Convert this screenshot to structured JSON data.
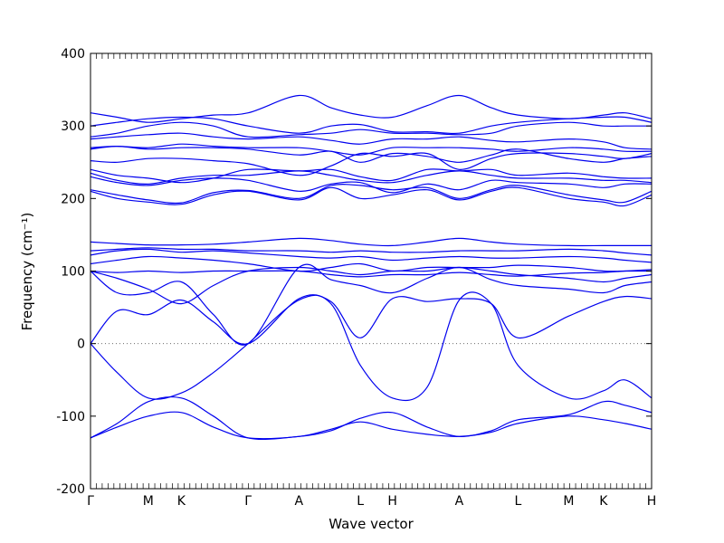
{
  "chart_data": {
    "type": "line",
    "xlabel": "Wave vector",
    "ylabel": "Frequency (cm⁻¹)",
    "ylim": [
      -200,
      400
    ],
    "yticks": [
      -200,
      -100,
      0,
      100,
      200,
      300,
      400
    ],
    "xlim": [
      0,
      10.5
    ],
    "xticks": [
      {
        "label": "Γ",
        "x": 0
      },
      {
        "label": "M",
        "x": 1.08
      },
      {
        "label": "K",
        "x": 1.7
      },
      {
        "label": "Γ",
        "x": 2.95
      },
      {
        "label": "A",
        "x": 3.9
      },
      {
        "label": "L",
        "x": 5.05
      },
      {
        "label": "H",
        "x": 5.65
      },
      {
        "label": "A",
        "x": 6.9
      },
      {
        "label": "L",
        "x": 8.0
      },
      {
        "label": "M",
        "x": 8.95
      },
      {
        "label": "K",
        "x": 9.6
      },
      {
        "label": "H",
        "x": 10.5
      }
    ],
    "zero_line": true,
    "series_color": "#0000ee",
    "x": [
      0,
      0.5,
      1.08,
      1.7,
      2.3,
      2.95,
      3.9,
      4.5,
      5.05,
      5.65,
      6.3,
      6.9,
      7.5,
      8.0,
      8.95,
      9.6,
      10.0,
      10.5
    ],
    "series": [
      {
        "values": [
          -130,
          -110,
          -80,
          -75,
          -100,
          -130,
          -128,
          -120,
          -103,
          -95,
          -115,
          -128,
          -120,
          -105,
          -98,
          -80,
          -85,
          -95
        ]
      },
      {
        "values": [
          -130,
          -115,
          -100,
          -95,
          -115,
          -130,
          -128,
          -118,
          -108,
          -118,
          -125,
          -128,
          -122,
          -110,
          -100,
          -105,
          -110,
          -118
        ]
      },
      {
        "values": [
          0,
          -40,
          -75,
          -68,
          -40,
          0,
          60,
          55,
          -30,
          -75,
          -60,
          60,
          55,
          -30,
          -75,
          -65,
          -50,
          -75
        ]
      },
      {
        "values": [
          0,
          45,
          40,
          60,
          30,
          0,
          62,
          58,
          8,
          62,
          58,
          62,
          55,
          8,
          38,
          58,
          65,
          62
        ]
      },
      {
        "values": [
          100,
          70,
          70,
          85,
          40,
          0,
          105,
          88,
          80,
          70,
          90,
          105,
          88,
          80,
          75,
          70,
          80,
          85
        ]
      },
      {
        "values": [
          100,
          90,
          75,
          55,
          80,
          100,
          105,
          100,
          95,
          100,
          100,
          105,
          100,
          95,
          90,
          85,
          90,
          95
        ]
      },
      {
        "values": [
          100,
          98,
          100,
          98,
          100,
          100,
          100,
          95,
          92,
          95,
          95,
          98,
          95,
          93,
          97,
          98,
          100,
          102
        ]
      },
      {
        "values": [
          110,
          115,
          120,
          118,
          115,
          110,
          100,
          105,
          110,
          100,
          105,
          105,
          105,
          108,
          105,
          100,
          100,
          100
        ]
      },
      {
        "values": [
          122,
          128,
          130,
          126,
          128,
          125,
          120,
          118,
          120,
          115,
          118,
          120,
          118,
          118,
          120,
          118,
          115,
          112
        ]
      },
      {
        "values": [
          128,
          130,
          132,
          130,
          130,
          128,
          128,
          126,
          128,
          126,
          126,
          128,
          128,
          128,
          130,
          128,
          125,
          122
        ]
      },
      {
        "values": [
          140,
          138,
          136,
          136,
          137,
          140,
          145,
          142,
          137,
          135,
          140,
          145,
          140,
          137,
          135,
          135,
          135,
          135
        ]
      },
      {
        "values": [
          210,
          200,
          195,
          192,
          205,
          210,
          198,
          215,
          200,
          205,
          212,
          198,
          210,
          215,
          200,
          195,
          190,
          205
        ]
      },
      {
        "values": [
          212,
          205,
          198,
          194,
          208,
          211,
          200,
          218,
          218,
          212,
          215,
          200,
          212,
          218,
          205,
          198,
          195,
          210
        ]
      },
      {
        "values": [
          230,
          222,
          218,
          225,
          228,
          225,
          210,
          220,
          222,
          208,
          220,
          212,
          225,
          222,
          220,
          215,
          220,
          220
        ]
      },
      {
        "values": [
          235,
          225,
          220,
          228,
          232,
          232,
          238,
          232,
          225,
          222,
          232,
          238,
          232,
          228,
          228,
          225,
          225,
          222
        ]
      },
      {
        "values": [
          240,
          232,
          228,
          222,
          228,
          240,
          238,
          240,
          230,
          225,
          240,
          238,
          240,
          232,
          235,
          230,
          228,
          228
        ]
      },
      {
        "values": [
          252,
          250,
          255,
          255,
          252,
          248,
          232,
          245,
          262,
          258,
          262,
          240,
          255,
          262,
          262,
          258,
          255,
          262
        ]
      },
      {
        "values": [
          268,
          272,
          268,
          270,
          270,
          268,
          260,
          265,
          250,
          262,
          258,
          250,
          260,
          268,
          255,
          250,
          255,
          258
        ]
      },
      {
        "values": [
          270,
          272,
          270,
          275,
          272,
          270,
          270,
          265,
          260,
          270,
          270,
          270,
          268,
          265,
          270,
          268,
          265,
          265
        ]
      },
      {
        "values": [
          282,
          285,
          288,
          290,
          285,
          282,
          285,
          280,
          275,
          282,
          282,
          285,
          280,
          278,
          282,
          278,
          270,
          268
        ]
      },
      {
        "values": [
          285,
          290,
          300,
          305,
          300,
          285,
          288,
          290,
          295,
          290,
          290,
          288,
          290,
          300,
          305,
          300,
          300,
          300
        ]
      },
      {
        "values": [
          300,
          305,
          310,
          312,
          310,
          300,
          290,
          300,
          302,
          292,
          292,
          290,
          300,
          305,
          310,
          312,
          312,
          305
        ]
      },
      {
        "values": [
          318,
          312,
          305,
          310,
          315,
          318,
          342,
          325,
          315,
          312,
          328,
          342,
          325,
          315,
          310,
          315,
          318,
          310
        ]
      }
    ]
  }
}
